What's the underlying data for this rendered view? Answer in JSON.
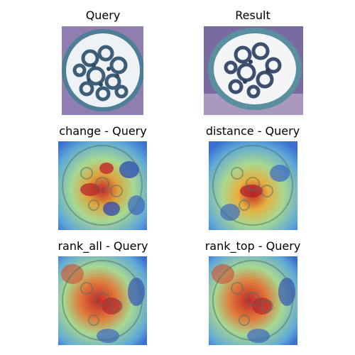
{
  "panels": [
    {
      "title": "Query",
      "kind": "histology",
      "variant": "query"
    },
    {
      "title": "Result",
      "kind": "histology",
      "variant": "result"
    },
    {
      "title": "change - Query",
      "kind": "heatmap",
      "variant": "change"
    },
    {
      "title": "distance - Query",
      "kind": "heatmap",
      "variant": "distance"
    },
    {
      "title": "rank_all - Query",
      "kind": "heatmap",
      "variant": "rank_all"
    },
    {
      "title": "rank_top - Query",
      "kind": "heatmap",
      "variant": "rank_top"
    }
  ],
  "colors": {
    "stain_background": "#8a7fb0",
    "tissue_blue": "#3f6e86",
    "lumen_white": "#f2f4f6",
    "heat_low": "#1f3fbf",
    "heat_mid": "#8fd6a0",
    "heat_high": "#c0282a"
  }
}
